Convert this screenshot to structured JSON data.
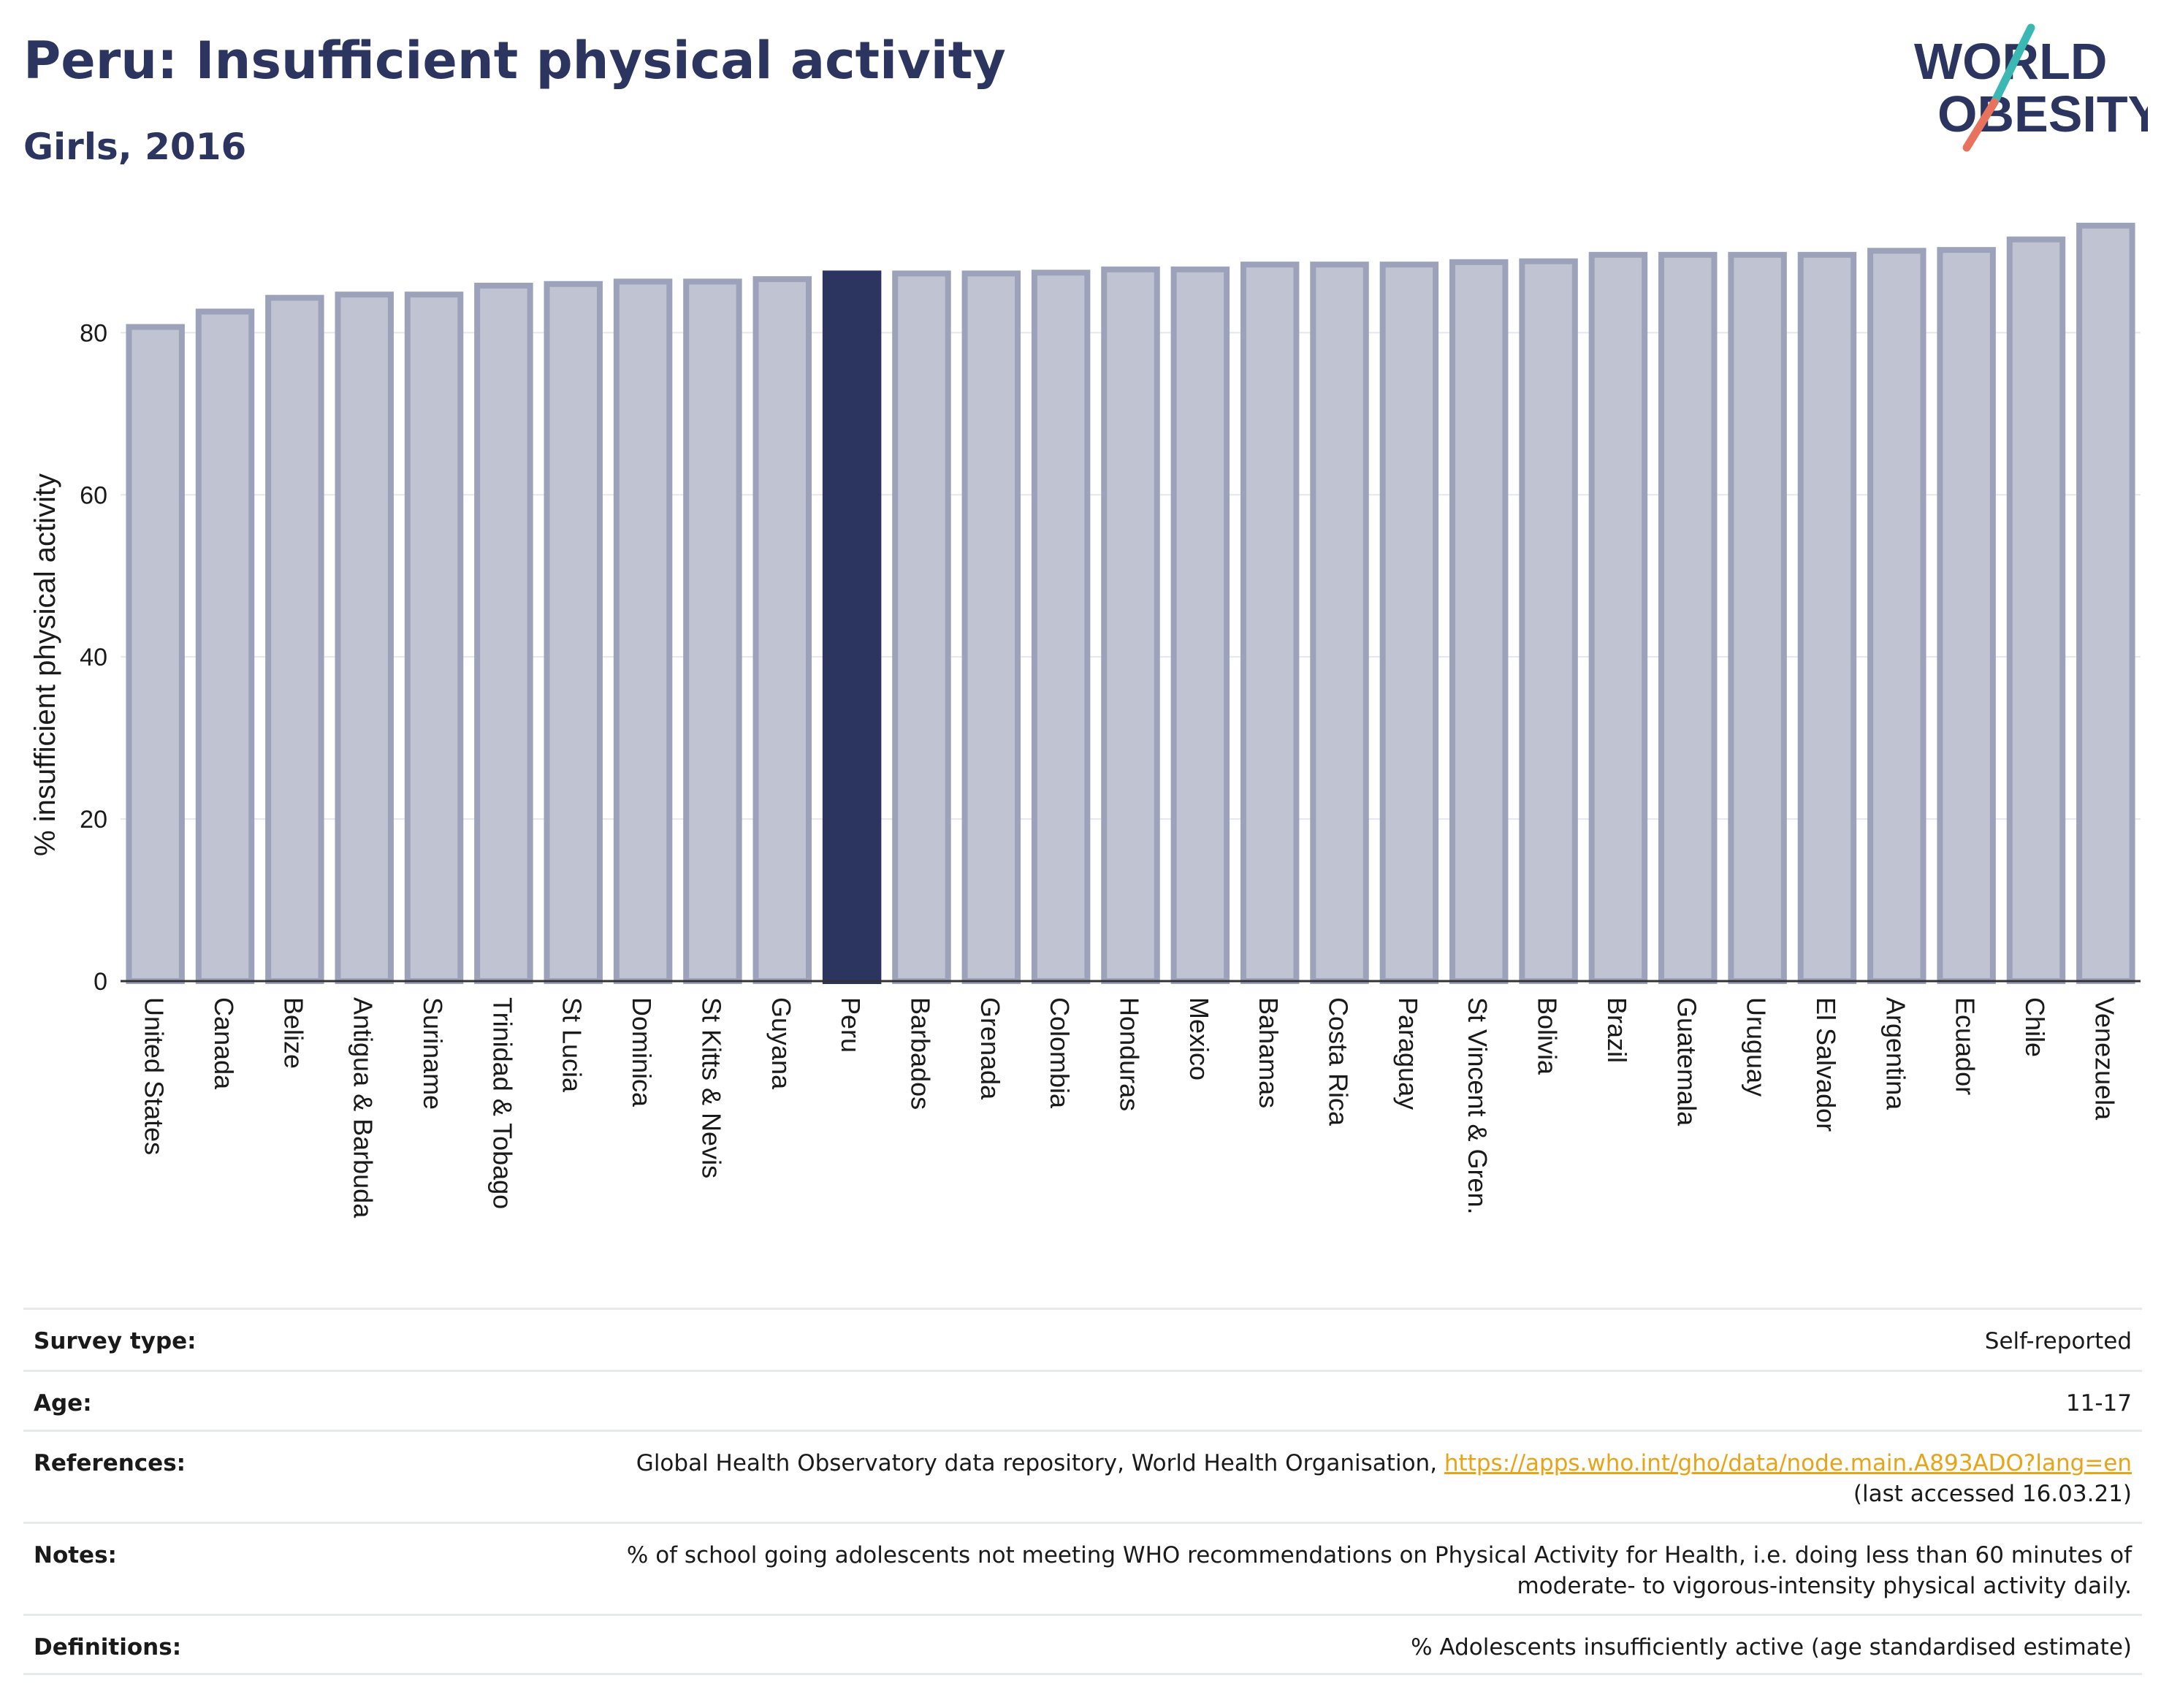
{
  "header": {
    "title": "Peru: Insufficient physical activity",
    "subtitle": "Girls, 2016"
  },
  "logo": {
    "line1": "WORLD",
    "line2": "OBESITY",
    "colors": {
      "text": "#2b3560",
      "slash_teal": "#3bb8b3",
      "slash_coral": "#e7735f"
    }
  },
  "colors": {
    "bar": "#c0c3d1",
    "bar_outline": "#9da2bb",
    "highlight": "#2b3560",
    "axis": "#333333",
    "grid": "#e6e6ee",
    "link": "#e8a317"
  },
  "chart_data": {
    "type": "bar",
    "title": "Peru: Insufficient physical activity",
    "subtitle": "Girls, 2016",
    "xlabel": "",
    "ylabel": "% insufficient physical activity",
    "ylim": [
      0,
      94
    ],
    "yticks": [
      0,
      20,
      40,
      60,
      80
    ],
    "grid": true,
    "highlight": "Peru",
    "categories": [
      "United States",
      "Canada",
      "Belize",
      "Antigua & Barbuda",
      "Suriname",
      "Trinidad & Tobago",
      "St Lucia",
      "Dominica",
      "St Kitts & Nevis",
      "Guyana",
      "Peru",
      "Barbados",
      "Grenada",
      "Colombia",
      "Honduras",
      "Mexico",
      "Bahamas",
      "Costa Rica",
      "Paraguay",
      "St Vincent & Gren.",
      "Bolivia",
      "Brazil",
      "Guatemala",
      "Uruguay",
      "El Salvador",
      "Argentina",
      "Ecuador",
      "Chile",
      "Venezuela"
    ],
    "values": [
      80.7,
      82.6,
      84.3,
      84.7,
      84.7,
      85.8,
      86.0,
      86.3,
      86.3,
      86.6,
      87.3,
      87.3,
      87.3,
      87.4,
      87.8,
      87.8,
      88.4,
      88.4,
      88.4,
      88.7,
      88.8,
      89.6,
      89.6,
      89.6,
      89.6,
      90.1,
      90.2,
      91.5,
      93.2
    ]
  },
  "info": {
    "survey_type_label": "Survey type:",
    "survey_type_value": "Self-reported",
    "age_label": "Age:",
    "age_value": "11-17",
    "references_label": "References:",
    "references_text": "Global Health Observatory data repository, World Health Organisation, ",
    "references_link": "https://apps.who.int/gho/data/node.main.A893ADO?lang=en",
    "references_accessed": "(last accessed 16.03.21)",
    "notes_label": "Notes:",
    "notes_value_line1": "% of school going adolescents not meeting WHO recommendations on Physical Activity for Health, i.e. doing less than 60 minutes of",
    "notes_value_line2": "moderate- to vigorous-intensity physical activity daily.",
    "definitions_label": "Definitions:",
    "definitions_value": "% Adolescents insufficiently active (age standardised estimate)"
  }
}
